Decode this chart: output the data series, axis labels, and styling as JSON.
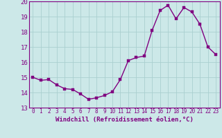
{
  "x": [
    0,
    1,
    2,
    3,
    4,
    5,
    6,
    7,
    8,
    9,
    10,
    11,
    12,
    13,
    14,
    15,
    16,
    17,
    18,
    19,
    20,
    21,
    22,
    23
  ],
  "y": [
    15.0,
    14.8,
    14.85,
    14.5,
    14.25,
    14.2,
    13.9,
    13.55,
    13.65,
    13.8,
    14.05,
    14.85,
    16.1,
    16.3,
    16.4,
    18.1,
    19.4,
    19.75,
    18.85,
    19.6,
    19.3,
    18.5,
    17.0,
    16.5
  ],
  "line_color": "#800080",
  "marker_color": "#800080",
  "bg_color": "#cce8e8",
  "grid_color": "#aacfcf",
  "xlabel": "Windchill (Refroidissement éolien,°C)",
  "ylim": [
    13,
    20
  ],
  "xlim": [
    -0.5,
    23.5
  ],
  "yticks": [
    13,
    14,
    15,
    16,
    17,
    18,
    19,
    20
  ],
  "xticks": [
    0,
    1,
    2,
    3,
    4,
    5,
    6,
    7,
    8,
    9,
    10,
    11,
    12,
    13,
    14,
    15,
    16,
    17,
    18,
    19,
    20,
    21,
    22,
    23
  ],
  "tick_color": "#800080",
  "label_color": "#800080",
  "font_size_xlabel": 6.5,
  "font_size_yticks": 6.5,
  "font_size_xticks": 5.5,
  "line_width": 1.0,
  "marker_size": 2.5
}
